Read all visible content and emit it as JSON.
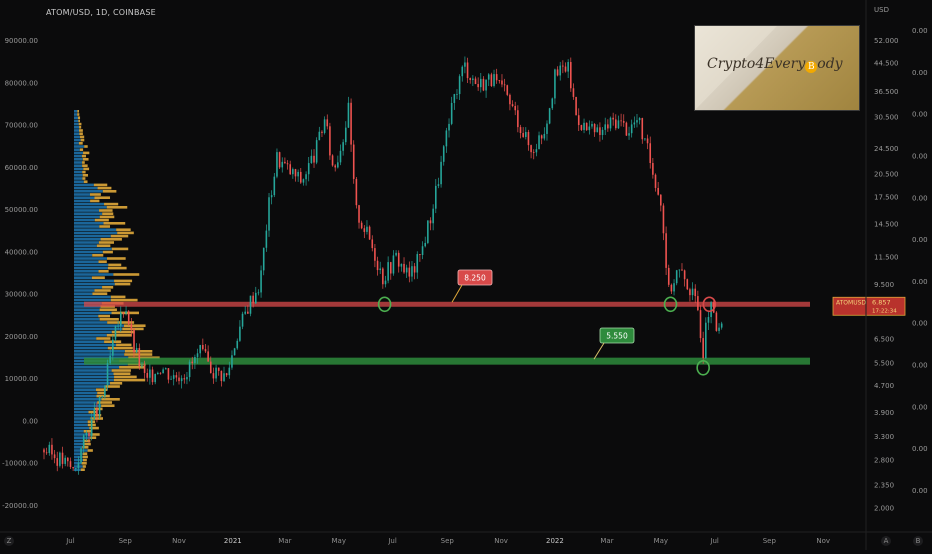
{
  "symbol_title": "ATOM/USD, 1D, COINBASE",
  "logo_text_pre": "Crypto4Every",
  "logo_text_post": "ody",
  "logo_coin": "B",
  "corner_left": "Z",
  "corner_right_a": "A",
  "corner_right_b": "B",
  "colors": {
    "background": "#0b0b0c",
    "up": "#26a69a",
    "down": "#ef5350",
    "resistance": "#d84a4a",
    "support": "#2e8b3c",
    "profile_blue": "#1f77b4",
    "profile_orange": "#e0a83a"
  },
  "chart_data": {
    "type": "candlestick",
    "title": "ATOM/USD, 1D, COINBASE",
    "x_tick_labels": [
      "Jul",
      "Sep",
      "Nov",
      "2021",
      "Mar",
      "May",
      "Jul",
      "Sep",
      "Nov",
      "2022",
      "Mar",
      "May",
      "Jul",
      "Sep",
      "Nov"
    ],
    "x_range": [
      "2020-06-01",
      "2022-12-15"
    ],
    "left_axis": {
      "labels": [
        "90000.00",
        "80000.00",
        "70000.00",
        "60000.00",
        "50000.00",
        "40000.00",
        "30000.00",
        "20000.00",
        "10000.00",
        "0.00",
        "-10000.00",
        "-20000.00"
      ],
      "range": [
        -20000,
        90000
      ]
    },
    "right_axis": {
      "unit_label": "USD",
      "scale": "log",
      "labels": [
        "52.000",
        "44.500",
        "36.500",
        "30.500",
        "24.500",
        "20.500",
        "17.500",
        "14.500",
        "11.500",
        "9.500",
        "8.000",
        "6.500",
        "5.500",
        "4.700",
        "3.900",
        "3.300",
        "2.800",
        "2.350",
        "2.000"
      ],
      "range": [
        1.9,
        55
      ]
    },
    "far_right_labels": [
      "0.00",
      "0.00",
      "0.00",
      "0.00",
      "0.00",
      "0.00",
      "0.00",
      "0.00",
      "0.00",
      "0.00",
      "0.00",
      "0.00"
    ],
    "price_path": [
      {
        "date": "2020-06-01",
        "price": 3.0
      },
      {
        "date": "2020-06-20",
        "price": 2.8
      },
      {
        "date": "2020-07-05",
        "price": 2.6
      },
      {
        "date": "2020-07-20",
        "price": 3.4
      },
      {
        "date": "2020-08-05",
        "price": 4.2
      },
      {
        "date": "2020-08-20",
        "price": 6.6
      },
      {
        "date": "2020-09-01",
        "price": 8.4
      },
      {
        "date": "2020-09-10",
        "price": 6.2
      },
      {
        "date": "2020-09-25",
        "price": 4.8
      },
      {
        "date": "2020-10-10",
        "price": 5.4
      },
      {
        "date": "2020-10-25",
        "price": 5.0
      },
      {
        "date": "2020-11-10",
        "price": 5.2
      },
      {
        "date": "2020-11-25",
        "price": 5.9
      },
      {
        "date": "2020-12-10",
        "price": 5.2
      },
      {
        "date": "2020-12-25",
        "price": 5.0
      },
      {
        "date": "2021-01-05",
        "price": 6.6
      },
      {
        "date": "2021-01-20",
        "price": 8.4
      },
      {
        "date": "2021-02-01",
        "price": 9.6
      },
      {
        "date": "2021-02-10",
        "price": 16.0
      },
      {
        "date": "2021-02-20",
        "price": 23.0
      },
      {
        "date": "2021-03-05",
        "price": 21.0
      },
      {
        "date": "2021-03-20",
        "price": 19.5
      },
      {
        "date": "2021-04-05",
        "price": 24.0
      },
      {
        "date": "2021-04-15",
        "price": 30.0
      },
      {
        "date": "2021-04-25",
        "price": 21.0
      },
      {
        "date": "2021-05-05",
        "price": 26.0
      },
      {
        "date": "2021-05-12",
        "price": 32.0
      },
      {
        "date": "2021-05-20",
        "price": 16.0
      },
      {
        "date": "2021-06-05",
        "price": 13.0
      },
      {
        "date": "2021-06-20",
        "price": 10.0
      },
      {
        "date": "2021-07-05",
        "price": 11.5
      },
      {
        "date": "2021-07-20",
        "price": 10.0
      },
      {
        "date": "2021-08-01",
        "price": 11.5
      },
      {
        "date": "2021-08-15",
        "price": 16.0
      },
      {
        "date": "2021-08-28",
        "price": 24.0
      },
      {
        "date": "2021-09-10",
        "price": 36.0
      },
      {
        "date": "2021-09-20",
        "price": 44.0
      },
      {
        "date": "2021-10-05",
        "price": 38.0
      },
      {
        "date": "2021-10-20",
        "price": 40.0
      },
      {
        "date": "2021-11-05",
        "price": 36.0
      },
      {
        "date": "2021-11-20",
        "price": 30.0
      },
      {
        "date": "2021-12-05",
        "price": 24.0
      },
      {
        "date": "2021-12-20",
        "price": 28.0
      },
      {
        "date": "2022-01-01",
        "price": 40.0
      },
      {
        "date": "2022-01-15",
        "price": 44.0
      },
      {
        "date": "2022-01-25",
        "price": 31.0
      },
      {
        "date": "2022-02-05",
        "price": 28.0
      },
      {
        "date": "2022-02-20",
        "price": 27.0
      },
      {
        "date": "2022-03-10",
        "price": 30.0
      },
      {
        "date": "2022-03-25",
        "price": 28.0
      },
      {
        "date": "2022-04-05",
        "price": 30.0
      },
      {
        "date": "2022-04-20",
        "price": 22.0
      },
      {
        "date": "2022-05-01",
        "price": 17.0
      },
      {
        "date": "2022-05-10",
        "price": 9.0
      },
      {
        "date": "2022-05-20",
        "price": 10.5
      },
      {
        "date": "2022-06-01",
        "price": 9.5
      },
      {
        "date": "2022-06-12",
        "price": 8.0
      },
      {
        "date": "2022-06-18",
        "price": 6.0
      },
      {
        "date": "2022-06-25",
        "price": 8.3
      },
      {
        "date": "2022-07-05",
        "price": 6.6
      },
      {
        "date": "2022-07-10",
        "price": 7.2
      }
    ],
    "horizontal_levels": [
      {
        "name": "resistance",
        "label": "8.250",
        "price": 8.25
      },
      {
        "name": "support",
        "label": "5.550",
        "price": 5.55
      }
    ],
    "touch_markers": [
      {
        "date": "2021-06-22",
        "price": 8.25,
        "kind": "support-touch"
      },
      {
        "date": "2022-05-12",
        "price": 8.25,
        "kind": "support-touch"
      },
      {
        "date": "2022-06-25",
        "price": 8.25,
        "kind": "resistance-touch"
      },
      {
        "date": "2022-06-18",
        "price": 5.3,
        "kind": "support-touch"
      }
    ],
    "last_price_label_symbol": "ATOMUSD",
    "last_price": "6.857",
    "last_price_countdown": "17:22:34",
    "grid": false
  }
}
